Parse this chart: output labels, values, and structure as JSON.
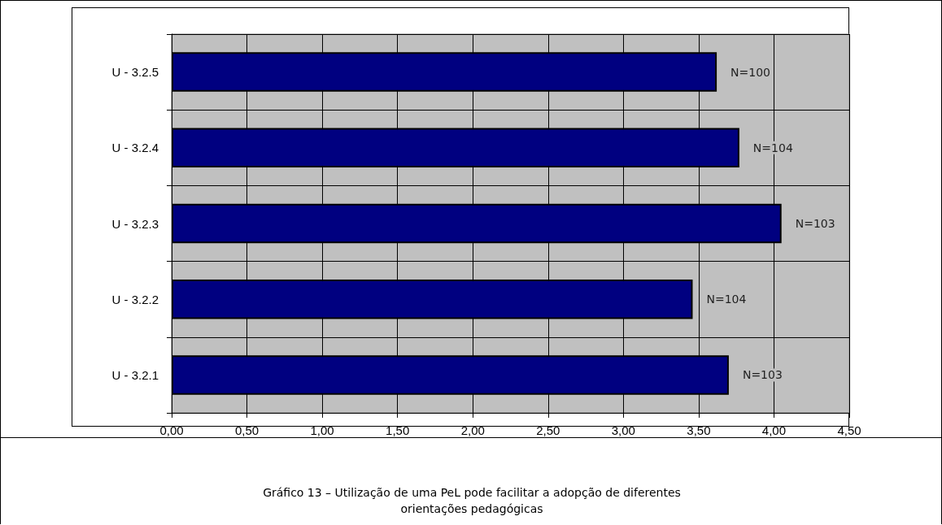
{
  "chart_data": {
    "type": "bar",
    "orientation": "horizontal",
    "categories": [
      "U - 3.2.5",
      "U - 3.2.4",
      "U - 3.2.3",
      "U - 3.2.2",
      "U - 3.2.1"
    ],
    "values": [
      3.62,
      3.77,
      4.05,
      3.46,
      3.7
    ],
    "title": "Gráfico 13 – Utilização de uma PeL pode facilitar a adopção de diferentes orientações pedagógicas",
    "color": "#000080",
    "xlim": [
      0,
      4.5
    ],
    "xticks": [
      {
        "value": 0,
        "label": "0,00"
      },
      {
        "value": 0.5,
        "label": "0,50"
      },
      {
        "value": 1,
        "label": "1,00"
      },
      {
        "value": 1.5,
        "label": "1,50"
      },
      {
        "value": 2,
        "label": "2,00"
      },
      {
        "value": 2.5,
        "label": "2,50"
      },
      {
        "value": 3,
        "label": "3,00"
      },
      {
        "value": 3.5,
        "label": "3,50"
      },
      {
        "value": 4,
        "label": "4,00"
      },
      {
        "value": 4.5,
        "label": "4,50"
      }
    ],
    "grid": true,
    "annotations": [
      "N=100",
      "N=104",
      "N=103",
      "N=104",
      "N=103"
    ]
  }
}
